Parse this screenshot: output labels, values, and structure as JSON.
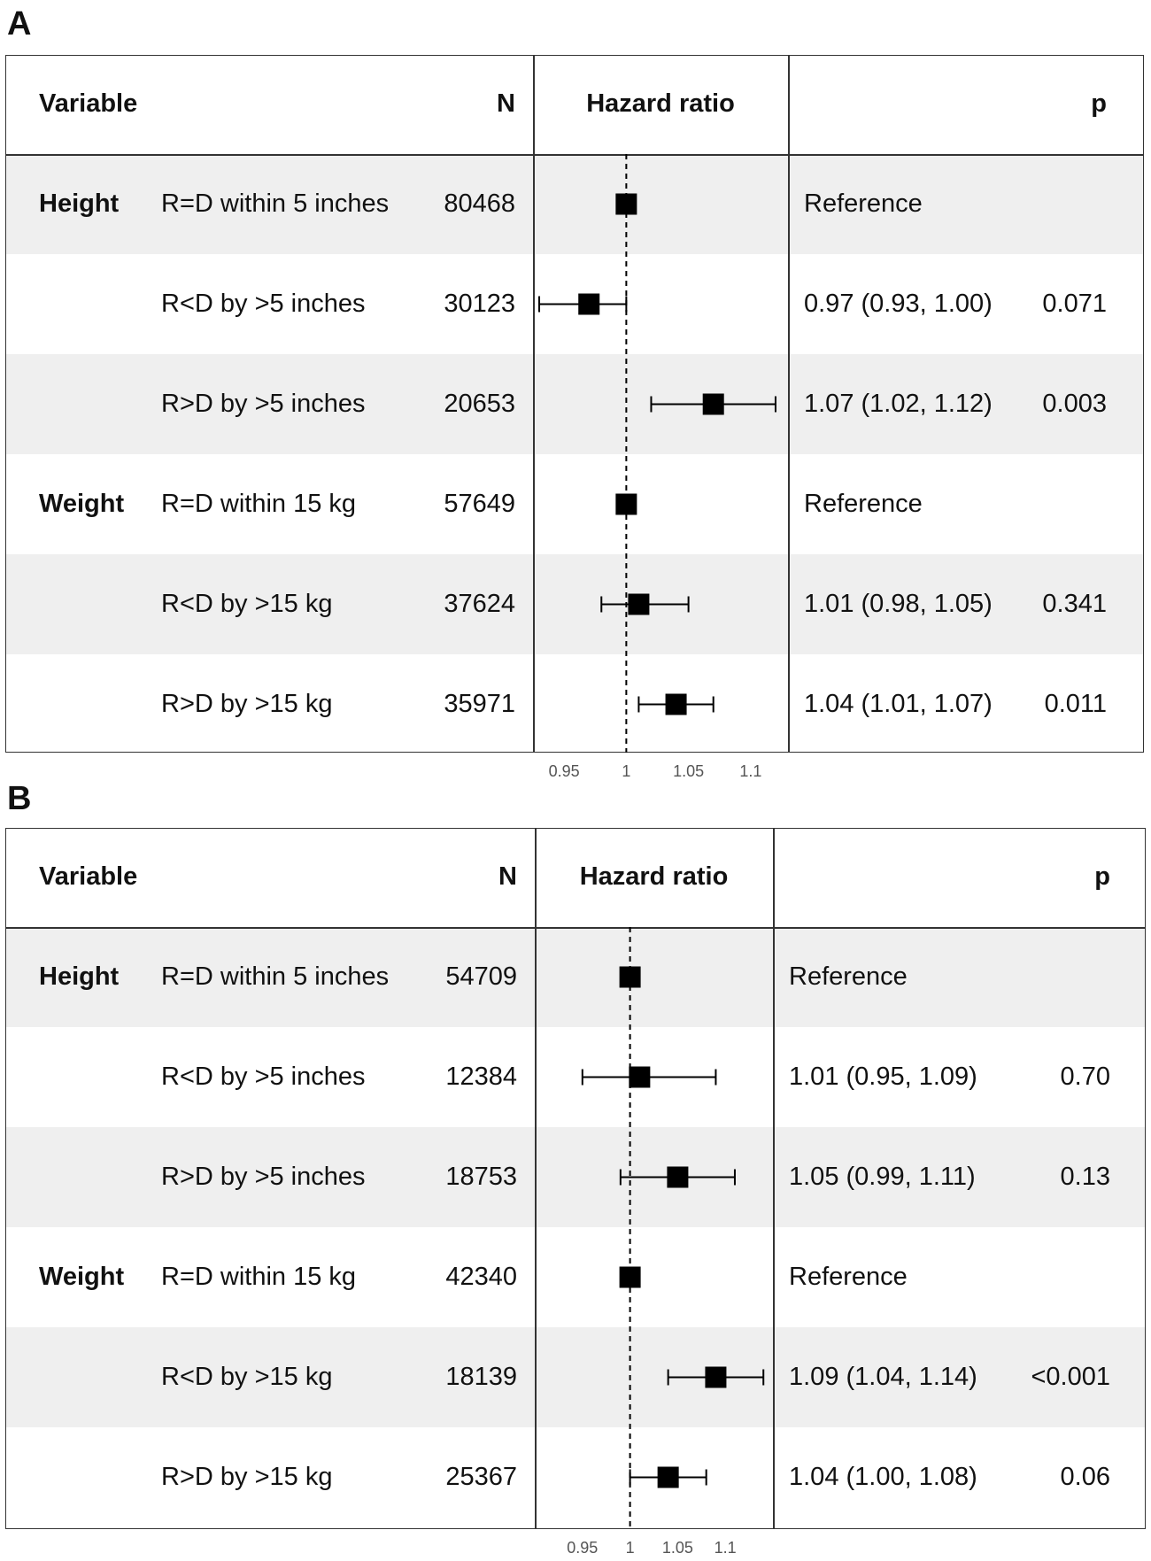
{
  "headers": {
    "variable": "Variable",
    "n": "N",
    "hazard_ratio": "Hazard ratio",
    "p": "p"
  },
  "colors": {
    "stripe": "#efefef",
    "marker": "#000000",
    "border": "#333333"
  },
  "chart_data": [
    {
      "type": "forest",
      "panel_label": "A",
      "x_ticks": [
        0.95,
        1,
        1.05,
        1.1
      ],
      "x_tick_labels": [
        "0.95",
        "1",
        "1.05",
        "1.1"
      ],
      "xlim": [
        0.925,
        1.13
      ],
      "reference_line": 1,
      "rows": [
        {
          "variable": "Height",
          "level": "R=D within 5 inches",
          "n": "80468",
          "hr": 1.0,
          "lower": null,
          "upper": null,
          "estimate_text": "Reference",
          "p": ""
        },
        {
          "variable": "",
          "level": "R<D by >5 inches",
          "n": "30123",
          "hr": 0.97,
          "lower": 0.93,
          "upper": 1.0,
          "estimate_text": "0.97 (0.93, 1.00)",
          "p": "0.071"
        },
        {
          "variable": "",
          "level": "R>D by >5 inches",
          "n": "20653",
          "hr": 1.07,
          "lower": 1.02,
          "upper": 1.12,
          "estimate_text": "1.07 (1.02, 1.12)",
          "p": "0.003"
        },
        {
          "variable": "Weight",
          "level": "R=D within 15 kg",
          "n": "57649",
          "hr": 1.0,
          "lower": null,
          "upper": null,
          "estimate_text": "Reference",
          "p": ""
        },
        {
          "variable": "",
          "level": "R<D by >15 kg",
          "n": "37624",
          "hr": 1.01,
          "lower": 0.98,
          "upper": 1.05,
          "estimate_text": "1.01 (0.98, 1.05)",
          "p": "0.341"
        },
        {
          "variable": "",
          "level": "R>D by >15 kg",
          "n": "35971",
          "hr": 1.04,
          "lower": 1.01,
          "upper": 1.07,
          "estimate_text": "1.04 (1.01, 1.07)",
          "p": "0.011"
        }
      ]
    },
    {
      "type": "forest",
      "panel_label": "B",
      "x_ticks": [
        0.95,
        1,
        1.05,
        1.1
      ],
      "x_tick_labels": [
        "0.95",
        "1",
        "1.05",
        "1.1"
      ],
      "xlim": [
        0.9,
        1.15
      ],
      "reference_line": 1,
      "rows": [
        {
          "variable": "Height",
          "level": "R=D within 5 inches",
          "n": "54709",
          "hr": 1.0,
          "lower": null,
          "upper": null,
          "estimate_text": "Reference",
          "p": ""
        },
        {
          "variable": "",
          "level": "R<D by >5 inches",
          "n": "12384",
          "hr": 1.01,
          "lower": 0.95,
          "upper": 1.09,
          "estimate_text": "1.01 (0.95, 1.09)",
          "p": "0.70"
        },
        {
          "variable": "",
          "level": "R>D by >5 inches",
          "n": "18753",
          "hr": 1.05,
          "lower": 0.99,
          "upper": 1.11,
          "estimate_text": "1.05 (0.99, 1.11)",
          "p": "0.13"
        },
        {
          "variable": "Weight",
          "level": "R=D within 15 kg",
          "n": "42340",
          "hr": 1.0,
          "lower": null,
          "upper": null,
          "estimate_text": "Reference",
          "p": ""
        },
        {
          "variable": "",
          "level": "R<D by >15 kg",
          "n": "18139",
          "hr": 1.09,
          "lower": 1.04,
          "upper": 1.14,
          "estimate_text": "1.09 (1.04, 1.14)",
          "p": "<0.001"
        },
        {
          "variable": "",
          "level": "R>D by >15 kg",
          "n": "25367",
          "hr": 1.04,
          "lower": 1.0,
          "upper": 1.08,
          "estimate_text": "1.04 (1.00, 1.08)",
          "p": "0.06"
        }
      ]
    }
  ]
}
